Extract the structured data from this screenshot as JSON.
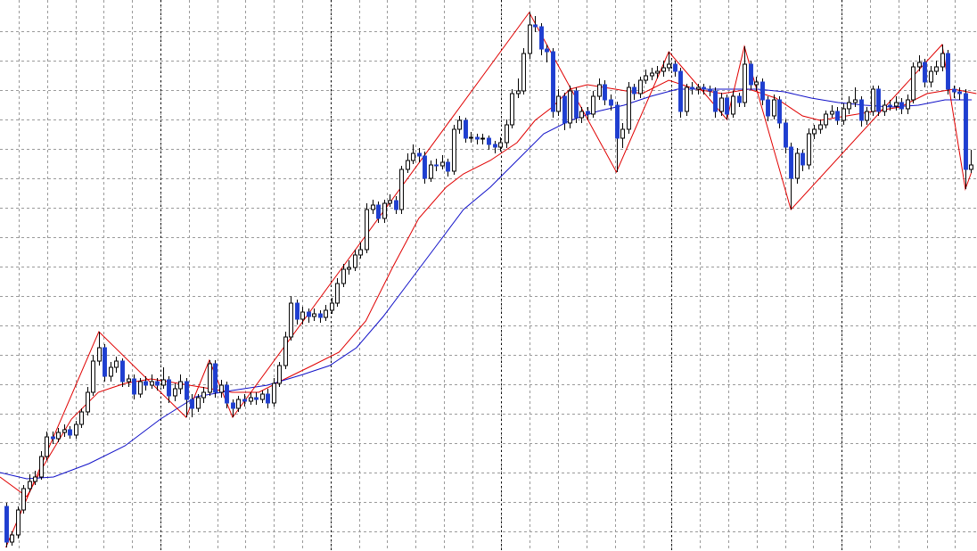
{
  "chart_data": {
    "type": "candlestick",
    "xlim": [
      -1,
      167
    ],
    "ylim": [
      0,
      618
    ],
    "grid": true,
    "yticks": [
      22,
      55,
      88,
      121,
      154,
      187,
      220,
      253,
      286,
      319,
      352,
      385,
      418,
      451,
      484,
      517,
      550,
      583
    ],
    "xticks": [
      2.2,
      7.1,
      12.0,
      16.8,
      21.7,
      26.6,
      31.5,
      36.4,
      41.2,
      46.1,
      51.0,
      55.9,
      60.8,
      65.6,
      70.5,
      75.4,
      80.3,
      85.2,
      90.0,
      94.9,
      99.8,
      104.7,
      109.6,
      114.4,
      119.3,
      124.2,
      129.1,
      134.0,
      138.8,
      143.7,
      148.6,
      153.5,
      158.4,
      163.2
    ],
    "separators": [
      26.6,
      55.9,
      85.2,
      114.4,
      143.7
    ],
    "up_color": "#ffffff",
    "down_color": "#1f3fd0",
    "open": [
      50,
      10,
      18,
      46,
      70,
      78,
      83,
      106,
      128,
      126,
      133,
      136,
      130,
      142,
      156,
      178,
      213,
      228,
      196,
      206,
      213,
      190,
      193,
      176,
      190,
      186,
      190,
      186,
      192,
      174,
      182,
      190,
      170,
      160,
      172,
      178,
      210,
      178,
      186,
      166,
      160,
      170,
      168,
      172,
      170,
      176,
      166,
      188,
      208,
      240,
      278,
      260,
      268,
      263,
      266,
      262,
      270,
      278,
      300,
      316,
      318,
      332,
      338,
      383,
      388,
      373,
      390,
      393,
      383,
      428,
      438,
      446,
      443,
      418,
      433,
      432,
      436,
      426,
      473,
      483,
      463,
      464,
      462,
      463,
      456,
      453,
      458,
      478,
      513,
      516,
      558,
      590,
      588,
      563,
      560,
      493,
      510,
      480,
      516,
      486,
      493,
      490,
      510,
      523,
      506,
      500,
      463,
      473,
      520,
      513,
      528,
      533,
      536,
      538,
      542,
      546,
      538,
      493,
      520,
      518,
      520,
      518,
      516,
      493,
      508,
      490,
      510,
      503,
      546,
      523,
      526,
      506,
      488,
      506,
      480,
      453,
      418,
      446,
      433,
      468,
      473,
      478,
      490,
      493,
      483,
      496,
      503,
      506,
      483,
      493,
      518,
      493,
      500,
      499,
      503,
      496,
      506,
      543,
      548,
      526,
      538,
      543,
      558,
      518,
      515,
      513,
      428
    ],
    "high": [
      54,
      22,
      50,
      74,
      86,
      90,
      112,
      134,
      134,
      138,
      142,
      140,
      146,
      160,
      184,
      220,
      246,
      232,
      212,
      218,
      216,
      198,
      198,
      194,
      196,
      198,
      194,
      206,
      196,
      188,
      198,
      194,
      176,
      176,
      184,
      214,
      214,
      192,
      190,
      170,
      174,
      176,
      178,
      178,
      180,
      182,
      194,
      212,
      246,
      286,
      282,
      274,
      272,
      272,
      270,
      276,
      284,
      306,
      322,
      326,
      338,
      346,
      390,
      394,
      392,
      394,
      400,
      398,
      432,
      446,
      456,
      452,
      448,
      438,
      440,
      444,
      440,
      478,
      488,
      486,
      470,
      468,
      468,
      466,
      460,
      464,
      484,
      518,
      530,
      564,
      604,
      600,
      592,
      568,
      564,
      518,
      514,
      522,
      520,
      498,
      498,
      516,
      530,
      528,
      512,
      504,
      480,
      526,
      524,
      532,
      540,
      542,
      544,
      550,
      560,
      550,
      542,
      524,
      526,
      524,
      524,
      522,
      520,
      514,
      512,
      516,
      514,
      566,
      550,
      532,
      530,
      510,
      512,
      510,
      484,
      458,
      452,
      450,
      474,
      478,
      484,
      494,
      500,
      498,
      502,
      510,
      520,
      510,
      498,
      522,
      522,
      506,
      506,
      510,
      508,
      512,
      548,
      556,
      552,
      544,
      550,
      568,
      562,
      522,
      520,
      518,
      450
    ],
    "low": [
      4,
      6,
      14,
      42,
      66,
      74,
      80,
      102,
      120,
      122,
      128,
      126,
      126,
      138,
      152,
      174,
      208,
      190,
      190,
      200,
      184,
      184,
      170,
      172,
      180,
      182,
      180,
      182,
      166,
      168,
      176,
      150,
      150,
      156,
      166,
      174,
      172,
      172,
      160,
      150,
      156,
      162,
      164,
      164,
      166,
      160,
      162,
      184,
      204,
      236,
      254,
      254,
      256,
      258,
      256,
      258,
      266,
      274,
      296,
      310,
      314,
      328,
      334,
      378,
      368,
      368,
      386,
      378,
      378,
      424,
      434,
      436,
      412,
      414,
      426,
      428,
      420,
      422,
      468,
      458,
      458,
      456,
      456,
      450,
      446,
      448,
      452,
      474,
      508,
      512,
      552,
      582,
      556,
      548,
      486,
      488,
      472,
      474,
      480,
      480,
      484,
      486,
      506,
      500,
      494,
      425,
      452,
      468,
      506,
      508,
      524,
      528,
      530,
      532,
      538,
      532,
      486,
      488,
      512,
      512,
      512,
      510,
      486,
      488,
      484,
      486,
      498,
      498,
      518,
      516,
      500,
      482,
      484,
      474,
      446,
      383,
      412,
      426,
      428,
      462,
      468,
      474,
      486,
      478,
      478,
      490,
      498,
      476,
      478,
      488,
      488,
      488,
      494,
      494,
      490,
      490,
      502,
      538,
      520,
      520,
      534,
      538,
      512,
      508,
      506,
      406,
      424
    ],
    "close": [
      10,
      18,
      46,
      70,
      78,
      83,
      106,
      128,
      126,
      133,
      136,
      130,
      142,
      156,
      178,
      213,
      228,
      196,
      206,
      213,
      190,
      193,
      176,
      190,
      186,
      190,
      186,
      192,
      174,
      182,
      190,
      170,
      160,
      172,
      178,
      210,
      178,
      186,
      166,
      160,
      170,
      168,
      172,
      170,
      176,
      166,
      188,
      208,
      240,
      278,
      260,
      268,
      263,
      266,
      262,
      270,
      278,
      300,
      316,
      318,
      332,
      338,
      383,
      388,
      373,
      390,
      393,
      383,
      428,
      438,
      446,
      443,
      418,
      433,
      432,
      436,
      426,
      473,
      483,
      463,
      464,
      462,
      463,
      456,
      453,
      458,
      478,
      513,
      516,
      558,
      590,
      588,
      563,
      560,
      493,
      510,
      480,
      516,
      486,
      493,
      490,
      510,
      523,
      506,
      500,
      463,
      473,
      520,
      513,
      528,
      533,
      536,
      538,
      542,
      546,
      538,
      493,
      520,
      518,
      520,
      518,
      516,
      493,
      508,
      490,
      510,
      503,
      546,
      523,
      526,
      506,
      488,
      506,
      480,
      453,
      418,
      446,
      433,
      468,
      473,
      478,
      490,
      493,
      483,
      496,
      503,
      506,
      483,
      493,
      518,
      493,
      500,
      499,
      503,
      496,
      506,
      543,
      548,
      526,
      538,
      543,
      558,
      518,
      515,
      513,
      428,
      433
    ],
    "series": [
      {
        "color": "#e00000",
        "x": [
          -1,
          3.6,
          6.7,
          11.3,
          15.9,
          20.5,
          25,
          29.7,
          34.3,
          38.9,
          43.5,
          48,
          52.7,
          57.3,
          61.9,
          66.5,
          71,
          75.7,
          78.7,
          83.3,
          87.9,
          91,
          94,
          97,
          100,
          104.8,
          109.4,
          114,
          118.6,
          123.2,
          127.8,
          132.4,
          137,
          140,
          144.6,
          149.2,
          153.8,
          158.4,
          163,
          166.9
        ],
        "values": [
          83,
          61,
          98,
          148,
          178,
          188,
          193,
          188,
          183,
          178,
          178,
          193,
          208,
          223,
          258,
          318,
          373,
          408,
          423,
          438,
          458,
          483,
          498,
          518,
          523,
          518,
          513,
          528,
          518,
          513,
          518,
          508,
          488,
          483,
          488,
          493,
          498,
          513,
          518,
          513
        ]
      },
      {
        "color": "#1010c8",
        "x": [
          -1,
          3.6,
          8.2,
          14.3,
          20.5,
          26.6,
          32.7,
          38.9,
          45,
          51.1,
          55.7,
          60.3,
          64.9,
          69.5,
          74.1,
          78.7,
          83.3,
          87.9,
          92.5,
          97.1,
          101.7,
          106.3,
          110.9,
          115.5,
          120.1,
          124.7,
          129.3,
          133.9,
          138.5,
          143.1,
          147.7,
          152.3,
          156.9,
          161.5,
          166.1
        ],
        "values": [
          88,
          81,
          83,
          98,
          118,
          148,
          173,
          180,
          186,
          198,
          208,
          228,
          263,
          303,
          343,
          383,
          408,
          438,
          468,
          483,
          493,
          500,
          510,
          518,
          518,
          518,
          518,
          515,
          508,
          503,
          500,
          498,
          500,
          506,
          506
        ]
      },
      {
        "color": "#e00000",
        "x": [
          0,
          16,
          31,
          35,
          39,
          90,
          105,
          114,
          124,
          127,
          135,
          161,
          165,
          166
        ],
        "values": [
          4,
          246,
          150,
          214,
          150,
          604,
          425,
          560,
          484,
          566,
          383,
          568,
          406,
          424
        ]
      }
    ]
  }
}
